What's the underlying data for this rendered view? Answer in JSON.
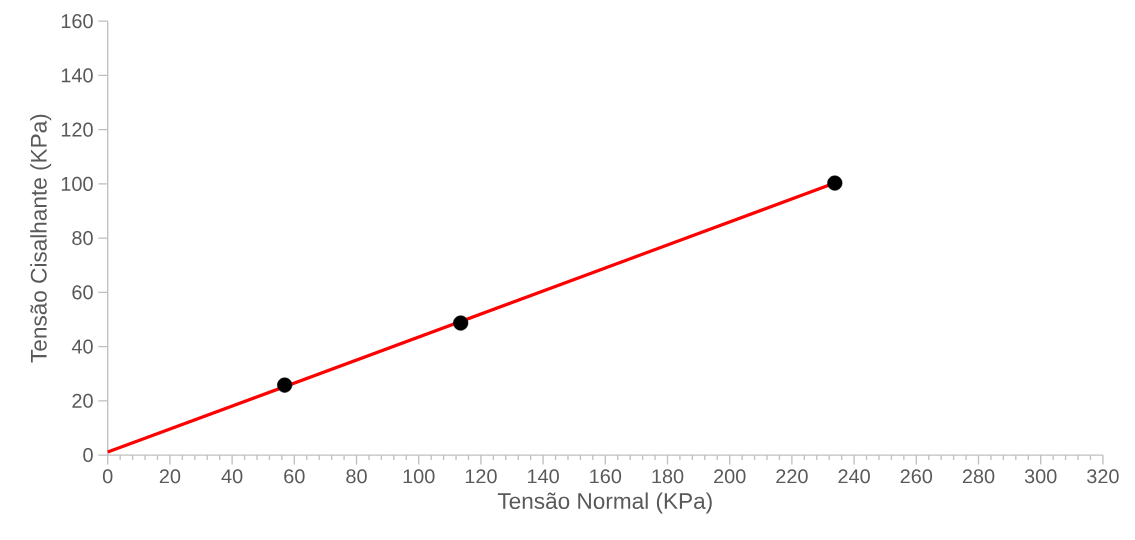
{
  "chart_data": {
    "type": "scatter",
    "xlabel": "Tensão Normal (KPa)",
    "ylabel": "Tensão Cisalhante (KPa)",
    "xlim": [
      0,
      320
    ],
    "ylim": [
      0,
      160
    ],
    "xticks": [
      0,
      20,
      40,
      60,
      80,
      100,
      120,
      140,
      160,
      180,
      200,
      220,
      240,
      260,
      280,
      300,
      320
    ],
    "yticks": [
      0,
      20,
      40,
      60,
      80,
      100,
      120,
      140,
      160
    ],
    "series": [
      {
        "color": "#000000",
        "marker": "circle",
        "x": [
          56.9,
          113.5,
          233.8
        ],
        "values": [
          25.8,
          48.7,
          100.3
        ]
      },
      {
        "type": "line",
        "color": "#ff0000",
        "marker": "none",
        "line_style": "solid",
        "x": [
          0,
          233.8
        ],
        "values": [
          1.1,
          100.3
        ]
      }
    ]
  }
}
